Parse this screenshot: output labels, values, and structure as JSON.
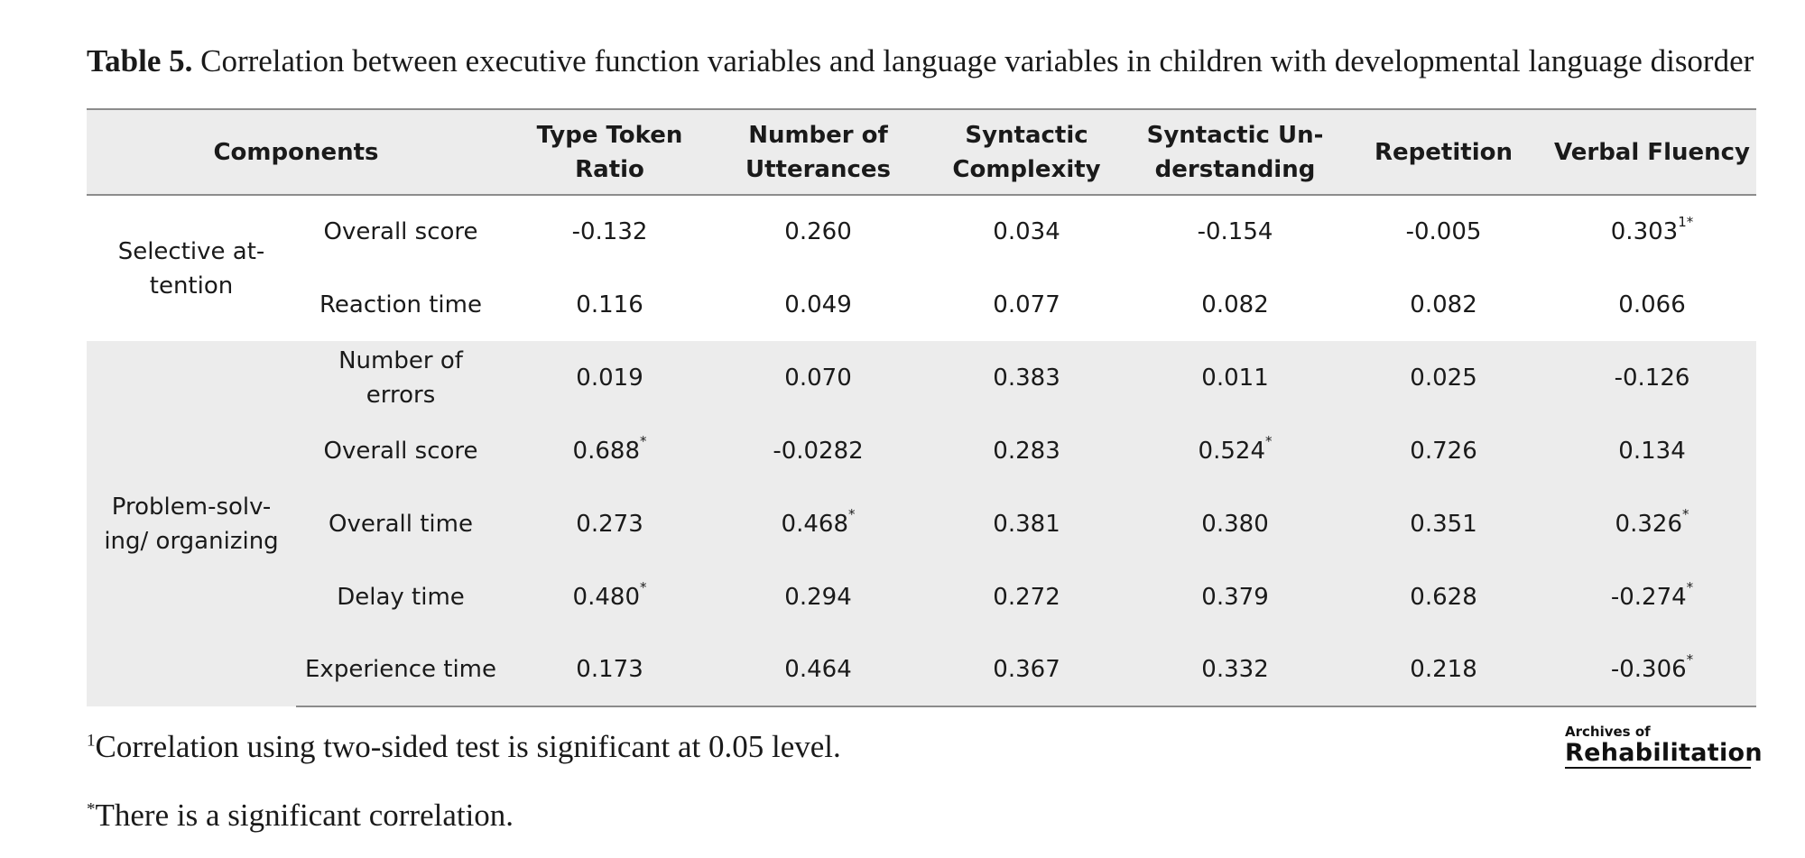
{
  "caption": {
    "label": "Table 5.",
    "text": " Correlation between executive function variables and language variables in children with developmental language disorder"
  },
  "table": {
    "header": {
      "components": "Components",
      "col1": "Type Token Ratio",
      "col2": "Number of Utterances",
      "col3": "Syntactic Complexity",
      "col4": "Syntactic Un-derstanding",
      "col5": "Repetition",
      "col6": "Verbal Fluency"
    },
    "groups": [
      {
        "name": "Selective at-tention",
        "rows": [
          {
            "label": "Overall score",
            "values": [
              "-0.132",
              "0.260",
              "0.034",
              "-0.154",
              "-0.005",
              "0.303"
            ],
            "marks": [
              "",
              "",
              "",
              "",
              "",
              "1*"
            ]
          },
          {
            "label": "Reaction time",
            "values": [
              "0.116",
              "0.049",
              "0.077",
              "0.082",
              "0.082",
              "0.066"
            ],
            "marks": [
              "",
              "",
              "",
              "",
              "",
              ""
            ]
          }
        ]
      },
      {
        "name": "Problem-solv-ing/ organizing",
        "rows": [
          {
            "label": "Number of errors",
            "values": [
              "0.019",
              "0.070",
              "0.383",
              "0.011",
              "0.025",
              "-0.126"
            ],
            "marks": [
              "",
              "",
              "",
              "",
              "",
              ""
            ]
          },
          {
            "label": "Overall score",
            "values": [
              "0.688",
              "-0.0282",
              "0.283",
              "0.524",
              "0.726",
              "0.134"
            ],
            "marks": [
              "*",
              "",
              "",
              "*",
              "",
              ""
            ]
          },
          {
            "label": "Overall time",
            "values": [
              "0.273",
              "0.468",
              "0.381",
              "0.380",
              "0.351",
              "0.326"
            ],
            "marks": [
              "",
              "*",
              "",
              "",
              "",
              "*"
            ]
          },
          {
            "label": "Delay time",
            "values": [
              "0.480",
              "0.294",
              "0.272",
              "0.379",
              "0.628",
              "-0.274"
            ],
            "marks": [
              "*",
              "",
              "",
              "",
              "",
              "*"
            ]
          },
          {
            "label": "Experience time",
            "values": [
              "0.173",
              "0.464",
              "0.367",
              "0.332",
              "0.218",
              "-0.306"
            ],
            "marks": [
              "",
              "",
              "",
              "",
              "",
              "*"
            ]
          }
        ]
      }
    ]
  },
  "footnotes": [
    {
      "mark": "1",
      "text": "Correlation using two-sided test is significant at 0.05 level."
    },
    {
      "mark": "*",
      "text": "There is a significant correlation."
    }
  ],
  "logo": {
    "small": "Archives of",
    "big": "Rehabilitation"
  }
}
